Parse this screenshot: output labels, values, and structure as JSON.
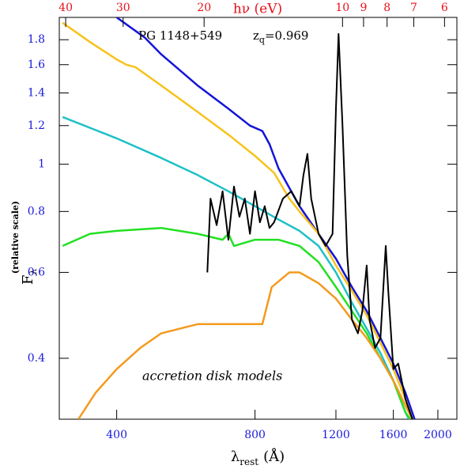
{
  "chart_data": {
    "type": "line",
    "log_x": true,
    "log_y": true,
    "xlabel": {
      "symbol": "λ",
      "subscript": "rest",
      "unit": "(Å)"
    },
    "ylabel": {
      "symbol": "F",
      "subscript": "λ",
      "note": "(relative scale)"
    },
    "x2label": "hν  (eV)",
    "annotation_object": "PG 1148+549",
    "annotation_redshift": {
      "symbol": "z",
      "subscript": "q",
      "value": "=0.969"
    },
    "annotation_models": "accretion disk models",
    "xlim": [
      300,
      2200
    ],
    "xticks": [
      400,
      800,
      1200,
      1600,
      2000
    ],
    "x2lim": [
      41.3,
      5.64
    ],
    "x2ticks": [
      40,
      30,
      20,
      10,
      9,
      8,
      7,
      6
    ],
    "x2color": "#e8101a",
    "ylim": [
      0.3,
      2.0
    ],
    "yticks": [
      0.4,
      0.6,
      0.8,
      1,
      1.2,
      1.4,
      1.6,
      1.8
    ],
    "ycolor": "#1a1adc",
    "series": [
      {
        "color": "#1414d8",
        "x": [
          400,
          460,
          500,
          600,
          700,
          780,
          830,
          860,
          900,
          1000,
          1100,
          1200,
          1300,
          1400,
          1500,
          1600,
          1700,
          1780
        ],
        "values": [
          2.0,
          1.82,
          1.68,
          1.45,
          1.3,
          1.2,
          1.17,
          1.1,
          0.98,
          0.82,
          0.72,
          0.64,
          0.56,
          0.5,
          0.44,
          0.39,
          0.34,
          0.3
        ]
      },
      {
        "color": "#f7c21a",
        "x": [
          305,
          350,
          400,
          420,
          440,
          500,
          600,
          700,
          800,
          880,
          950,
          1000,
          1100,
          1200,
          1300,
          1400,
          1500,
          1600,
          1700,
          1760
        ],
        "values": [
          1.95,
          1.78,
          1.64,
          1.6,
          1.58,
          1.45,
          1.28,
          1.15,
          1.04,
          0.96,
          0.85,
          0.8,
          0.72,
          0.62,
          0.55,
          0.49,
          0.43,
          0.38,
          0.33,
          0.3
        ]
      },
      {
        "color": "#1fc0c8",
        "x": [
          305,
          400,
          500,
          600,
          700,
          800,
          900,
          1000,
          1100,
          1200,
          1300,
          1400,
          1500,
          1600,
          1700,
          1730
        ],
        "values": [
          1.25,
          1.13,
          1.03,
          0.95,
          0.88,
          0.82,
          0.77,
          0.73,
          0.68,
          0.6,
          0.52,
          0.46,
          0.41,
          0.36,
          0.31,
          0.3
        ]
      },
      {
        "color": "#22e022",
        "x": [
          305,
          350,
          400,
          500,
          600,
          680,
          700,
          720,
          800,
          900,
          1000,
          1100,
          1200,
          1300,
          1400,
          1500,
          1600,
          1700,
          1740
        ],
        "values": [
          0.68,
          0.72,
          0.73,
          0.74,
          0.72,
          0.7,
          0.72,
          0.68,
          0.7,
          0.7,
          0.68,
          0.63,
          0.56,
          0.5,
          0.45,
          0.4,
          0.36,
          0.31,
          0.3
        ]
      },
      {
        "color": "#f39a1e",
        "x": [
          330,
          360,
          400,
          450,
          500,
          600,
          700,
          800,
          830,
          870,
          950,
          1000,
          1100,
          1200,
          1300,
          1400,
          1500,
          1600,
          1700,
          1760
        ],
        "values": [
          0.3,
          0.34,
          0.38,
          0.42,
          0.45,
          0.47,
          0.47,
          0.47,
          0.47,
          0.56,
          0.6,
          0.6,
          0.57,
          0.53,
          0.48,
          0.44,
          0.4,
          0.36,
          0.32,
          0.3
        ]
      },
      {
        "color": "#000000",
        "x": [
          630,
          640,
          660,
          680,
          700,
          720,
          740,
          760,
          780,
          800,
          820,
          840,
          860,
          880,
          920,
          960,
          1000,
          1020,
          1040,
          1060,
          1100,
          1140,
          1180,
          1200,
          1216,
          1240,
          1270,
          1300,
          1340,
          1370,
          1400,
          1420,
          1460,
          1500,
          1540,
          1560,
          1600,
          1640,
          1700,
          1760
        ],
        "values": [
          0.6,
          0.85,
          0.75,
          0.88,
          0.7,
          0.9,
          0.78,
          0.85,
          0.72,
          0.88,
          0.76,
          0.82,
          0.74,
          0.76,
          0.85,
          0.88,
          0.82,
          0.95,
          1.05,
          0.85,
          0.72,
          0.68,
          0.72,
          1.3,
          1.85,
          1.2,
          0.65,
          0.48,
          0.45,
          0.5,
          0.62,
          0.48,
          0.42,
          0.44,
          0.68,
          0.55,
          0.38,
          0.39,
          0.33,
          0.3
        ]
      }
    ]
  }
}
